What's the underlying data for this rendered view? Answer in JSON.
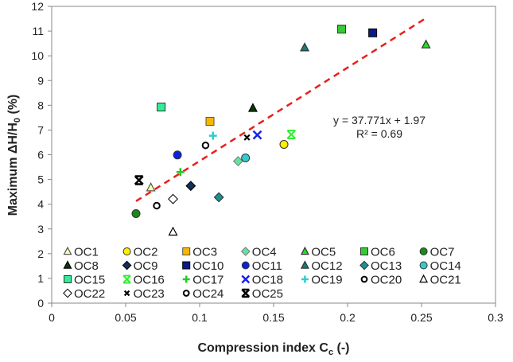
{
  "chart_data": {
    "type": "scatter",
    "title": "",
    "xlabel": "Compression index C",
    "xlabel_sub": "c",
    "xlabel_suffix": " (-)",
    "ylabel": "Maximum ΔH/H",
    "ylabel_sub": "0",
    "ylabel_suffix": " (%)",
    "xlim": [
      0,
      0.3
    ],
    "ylim": [
      0,
      12
    ],
    "xticks": [
      0,
      0.05,
      0.1,
      0.15,
      0.2,
      0.25,
      0.3
    ],
    "xtick_labels": [
      "0",
      "0.05",
      "0.1",
      "0.15",
      "0.2",
      "0.25",
      "0.3"
    ],
    "yticks": [
      0,
      1,
      2,
      3,
      4,
      5,
      6,
      7,
      8,
      9,
      10,
      11,
      12
    ],
    "ytick_labels": [
      "0",
      "1",
      "2",
      "3",
      "4",
      "5",
      "6",
      "7",
      "8",
      "9",
      "10",
      "11",
      "12"
    ],
    "grid": false,
    "legend_placement": "bottom-inside",
    "trendline": {
      "slope": 37.771,
      "intercept": 1.97,
      "x_range": [
        0.057,
        0.252
      ],
      "color": "#e8201c",
      "equation": "y = 37.771x + 1.97",
      "r2": "R² = 0.69"
    },
    "series": [
      {
        "name": "OC1",
        "x": 0.067,
        "y": 4.67,
        "marker": "triangle",
        "fill": "#ffffa0",
        "stroke": "#555"
      },
      {
        "name": "OC2",
        "x": 0.157,
        "y": 6.42,
        "marker": "circle",
        "fill": "#ffee00",
        "stroke": "#333"
      },
      {
        "name": "OC3",
        "x": 0.107,
        "y": 7.35,
        "marker": "square",
        "fill": "#f5b800",
        "stroke": "#555"
      },
      {
        "name": "OC4",
        "x": 0.126,
        "y": 5.74,
        "marker": "diamond",
        "fill": "#66e0a0",
        "stroke": "#777"
      },
      {
        "name": "OC5",
        "x": 0.253,
        "y": 10.45,
        "marker": "triangle",
        "fill": "#22dd22",
        "stroke": "#333"
      },
      {
        "name": "OC6",
        "x": 0.196,
        "y": 11.08,
        "marker": "square",
        "fill": "#33cc33",
        "stroke": "#333"
      },
      {
        "name": "OC7",
        "x": 0.057,
        "y": 3.62,
        "marker": "circle",
        "fill": "#1a8a1a",
        "stroke": "#333"
      },
      {
        "name": "OC8",
        "x": 0.136,
        "y": 7.88,
        "marker": "triangle",
        "fill": "#0a3a0a",
        "stroke": "#000"
      },
      {
        "name": "OC9",
        "x": 0.094,
        "y": 4.74,
        "marker": "diamond",
        "fill": "#12305a",
        "stroke": "#000"
      },
      {
        "name": "OC10",
        "x": 0.217,
        "y": 10.93,
        "marker": "square",
        "fill": "#0a1a8a",
        "stroke": "#000"
      },
      {
        "name": "OC11",
        "x": 0.085,
        "y": 5.99,
        "marker": "circle",
        "fill": "#0a22dd",
        "stroke": "#333"
      },
      {
        "name": "OC12",
        "x": 0.171,
        "y": 10.33,
        "marker": "triangle",
        "fill": "#1a7a7a",
        "stroke": "#333"
      },
      {
        "name": "OC13",
        "x": 0.113,
        "y": 4.28,
        "marker": "diamond",
        "fill": "#1a9090",
        "stroke": "#333"
      },
      {
        "name": "OC14",
        "x": 0.131,
        "y": 5.87,
        "marker": "circle",
        "fill": "#33cccc",
        "stroke": "#333"
      },
      {
        "name": "OC15",
        "x": 0.074,
        "y": 7.93,
        "marker": "square",
        "fill": "#33ee99",
        "stroke": "#333"
      },
      {
        "name": "OC16",
        "x": 0.162,
        "y": 6.82,
        "marker": "asterisk",
        "fill": "#33ee33",
        "stroke": "#33ee33"
      },
      {
        "name": "OC17",
        "x": 0.087,
        "y": 5.3,
        "marker": "plus",
        "fill": "#22cc22",
        "stroke": "#22cc22"
      },
      {
        "name": "OC18",
        "x": 0.139,
        "y": 6.8,
        "marker": "x",
        "fill": "#1a22ee",
        "stroke": "#1a22ee"
      },
      {
        "name": "OC19",
        "x": 0.109,
        "y": 6.77,
        "marker": "plus",
        "fill": "#33cccc",
        "stroke": "#33cccc"
      },
      {
        "name": "OC20",
        "x": 0.104,
        "y": 6.38,
        "marker": "ring",
        "fill": "#fff",
        "stroke": "#000"
      },
      {
        "name": "OC21",
        "x": 0.082,
        "y": 2.88,
        "marker": "triangle",
        "fill": "#fff",
        "stroke": "#000"
      },
      {
        "name": "OC22",
        "x": 0.082,
        "y": 4.21,
        "marker": "diamond",
        "fill": "#fff",
        "stroke": "#000"
      },
      {
        "name": "OC23",
        "x": 0.132,
        "y": 6.7,
        "marker": "xsmall",
        "fill": "#000",
        "stroke": "#000"
      },
      {
        "name": "OC24",
        "x": 0.071,
        "y": 3.94,
        "marker": "ring",
        "fill": "#fff",
        "stroke": "#000"
      },
      {
        "name": "OC25",
        "x": 0.059,
        "y": 4.97,
        "marker": "xbold",
        "fill": "#000",
        "stroke": "#000"
      }
    ]
  }
}
